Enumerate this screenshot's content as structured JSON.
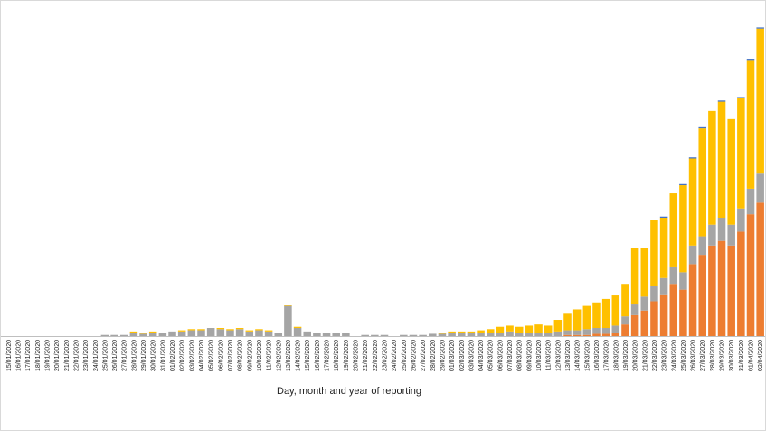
{
  "chart_data": {
    "type": "bar",
    "stacked": true,
    "title": "",
    "xlabel": "Day, month and year of reporting",
    "ylabel": "",
    "grid": false,
    "legend": "none",
    "categories": [
      "15/01/2020",
      "16/01/2020",
      "17/01/2020",
      "18/01/2020",
      "19/01/2020",
      "20/01/2020",
      "21/01/2020",
      "22/01/2020",
      "23/01/2020",
      "24/01/2020",
      "25/01/2020",
      "26/01/2020",
      "27/01/2020",
      "28/01/2020",
      "29/01/2020",
      "30/01/2020",
      "31/01/2020",
      "01/02/2020",
      "02/02/2020",
      "03/02/2020",
      "04/02/2020",
      "05/02/2020",
      "06/02/2020",
      "07/02/2020",
      "08/02/2020",
      "09/02/2020",
      "10/02/2020",
      "11/02/2020",
      "12/02/2020",
      "13/02/2020",
      "14/02/2020",
      "15/02/2020",
      "16/02/2020",
      "17/02/2020",
      "18/02/2020",
      "19/02/2020",
      "20/02/2020",
      "21/02/2020",
      "22/02/2020",
      "23/02/2020",
      "24/02/2020",
      "25/02/2020",
      "26/02/2020",
      "27/02/2020",
      "28/02/2020",
      "29/02/2020",
      "01/03/2020",
      "02/03/2020",
      "03/03/2020",
      "04/03/2020",
      "05/03/2020",
      "06/03/2020",
      "07/03/2020",
      "08/03/2020",
      "09/03/2020",
      "10/03/2020",
      "11/03/2020",
      "12/03/2020",
      "13/03/2020",
      "14/03/2020",
      "15/03/2020",
      "16/03/2020",
      "17/03/2020",
      "18/03/2020",
      "19/03/2020",
      "20/03/2020",
      "21/03/2020",
      "22/03/2020",
      "23/03/2020",
      "24/03/2020",
      "25/03/2020",
      "26/03/2020",
      "27/03/2020",
      "28/03/2020",
      "29/03/2020",
      "30/03/2020",
      "31/03/2020",
      "01/04/2020",
      "02/04/2020"
    ],
    "series": [
      {
        "color": "#ed7d31",
        "values": [
          0,
          0,
          0,
          0,
          0,
          0,
          0,
          0,
          0,
          0,
          0,
          0,
          0,
          0,
          0,
          0,
          0,
          0,
          0,
          0,
          0,
          0,
          0,
          0,
          0,
          0,
          0,
          0,
          0,
          0,
          0,
          0,
          0,
          0,
          0,
          0,
          0,
          0,
          0,
          0,
          0,
          0,
          0,
          0,
          0,
          0,
          0,
          0,
          0,
          0,
          0,
          0,
          0,
          0,
          0,
          0,
          0,
          0,
          1,
          1,
          1,
          2,
          2,
          3,
          10,
          18,
          22,
          30,
          36,
          45,
          40,
          62,
          70,
          78,
          82,
          78,
          90,
          105,
          115
        ]
      },
      {
        "color": "#a5a5a5",
        "values": [
          0,
          0,
          0,
          0,
          0,
          0,
          0,
          0,
          0,
          0,
          1,
          1,
          1,
          3,
          2,
          3,
          3,
          4,
          4,
          5,
          5,
          7,
          6,
          5,
          6,
          4,
          5,
          4,
          3,
          26,
          7,
          4,
          3,
          3,
          3,
          3,
          0,
          1,
          1,
          1,
          0,
          1,
          1,
          1,
          2,
          2,
          3,
          3,
          3,
          3,
          3,
          3,
          4,
          3,
          3,
          3,
          3,
          4,
          4,
          4,
          5,
          5,
          5,
          6,
          7,
          10,
          12,
          13,
          14,
          15,
          15,
          16,
          16,
          18,
          20,
          18,
          20,
          22,
          25
        ]
      },
      {
        "color": "#ffc000",
        "values": [
          0,
          0,
          0,
          0,
          0,
          0,
          0,
          0,
          0,
          0,
          0,
          0,
          0,
          1,
          1,
          1,
          0,
          0,
          1,
          1,
          1,
          0,
          1,
          1,
          1,
          1,
          1,
          1,
          0,
          1,
          1,
          0,
          0,
          0,
          0,
          0,
          0,
          0,
          0,
          0,
          0,
          0,
          0,
          0,
          0,
          1,
          1,
          1,
          1,
          2,
          3,
          5,
          5,
          5,
          6,
          7,
          6,
          10,
          15,
          18,
          20,
          22,
          25,
          26,
          28,
          48,
          42,
          57,
          52,
          63,
          75,
          75,
          93,
          98,
          100,
          91,
          95,
          111,
          125
        ]
      },
      {
        "color": "#4472c4",
        "values": [
          0,
          0,
          0,
          0,
          0,
          0,
          0,
          0,
          0,
          0,
          0,
          0,
          0,
          0,
          0,
          0,
          0,
          0,
          0,
          0,
          0,
          0,
          0,
          0,
          0,
          0,
          0,
          0,
          0,
          0,
          0,
          0,
          0,
          0,
          0,
          0,
          0,
          0,
          0,
          0,
          0,
          0,
          0,
          0,
          0,
          0,
          0,
          0,
          0,
          0,
          0,
          0,
          0,
          0,
          0,
          0,
          0,
          0,
          0,
          0,
          0,
          0,
          0,
          0,
          0,
          0,
          0,
          0,
          1,
          0,
          1,
          1,
          1,
          0,
          1,
          0,
          1,
          1,
          1
        ]
      }
    ],
    "ylim": [
      0,
      285
    ]
  }
}
